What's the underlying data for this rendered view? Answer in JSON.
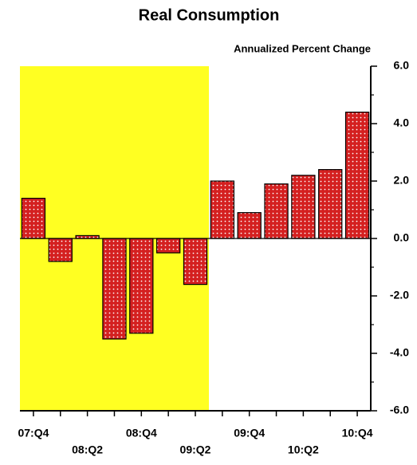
{
  "chart_data": {
    "type": "bar",
    "title": "Real Consumption",
    "subtitle": "Annualized Percent Change",
    "categories": [
      "07:Q4",
      null,
      "08:Q2",
      null,
      "08:Q4",
      null,
      "09:Q2",
      null,
      "09:Q4",
      null,
      "10:Q2",
      null,
      "10:Q4"
    ],
    "values": [
      1.4,
      -0.8,
      0.1,
      -3.5,
      -3.3,
      -0.5,
      -1.6,
      2.0,
      0.9,
      1.9,
      2.2,
      2.4,
      4.4
    ],
    "color": "#d42020",
    "ylim": [
      -6,
      6
    ],
    "yticks": [
      {
        "value": -6,
        "label": "-6.0"
      },
      {
        "value": -4,
        "label": "-4.0"
      },
      {
        "value": -2,
        "label": "-2.0"
      },
      {
        "value": 0,
        "label": "0.0"
      },
      {
        "value": 2,
        "label": "2.0"
      },
      {
        "value": 4,
        "label": "4.0"
      },
      {
        "value": 6,
        "label": "6.0"
      }
    ]
  }
}
